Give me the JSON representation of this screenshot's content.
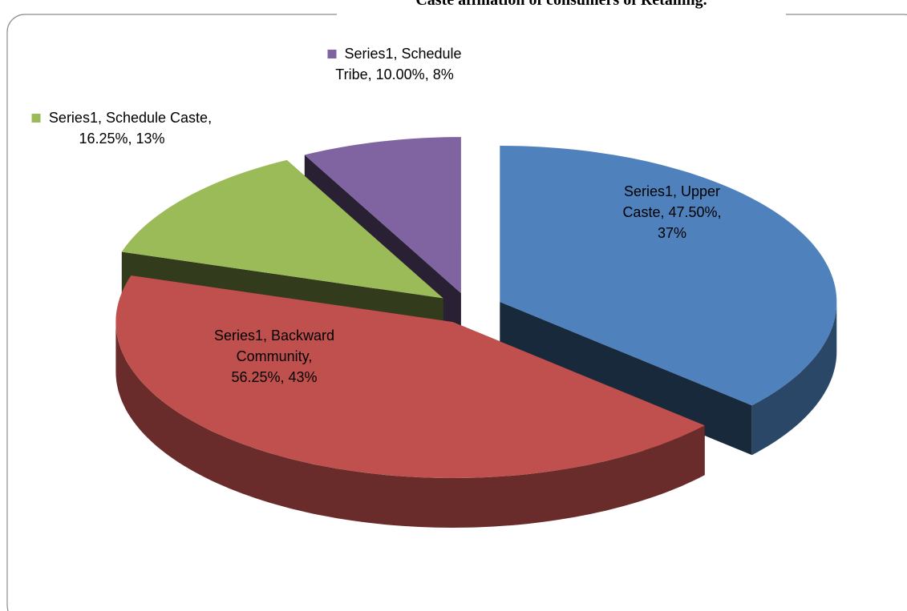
{
  "chart_data": {
    "type": "pie3d",
    "title": "Caste affiliation of consumers of Retailing.",
    "series_name": "Series1",
    "categories": [
      "Upper Caste",
      "Backward Community",
      "Schedule Caste",
      "Schedule Tribe"
    ],
    "values": [
      47.5,
      56.25,
      16.25,
      10
    ],
    "value_labels": [
      "47.50%",
      "56.25%",
      "16.25%",
      "10.00%"
    ],
    "percents": [
      37,
      43,
      13,
      8
    ],
    "percent_labels": [
      "37%",
      "43%",
      "13%",
      "8%"
    ],
    "colors": [
      "#4f81bd",
      "#c0504d",
      "#9bbb59",
      "#8064a2"
    ]
  }
}
